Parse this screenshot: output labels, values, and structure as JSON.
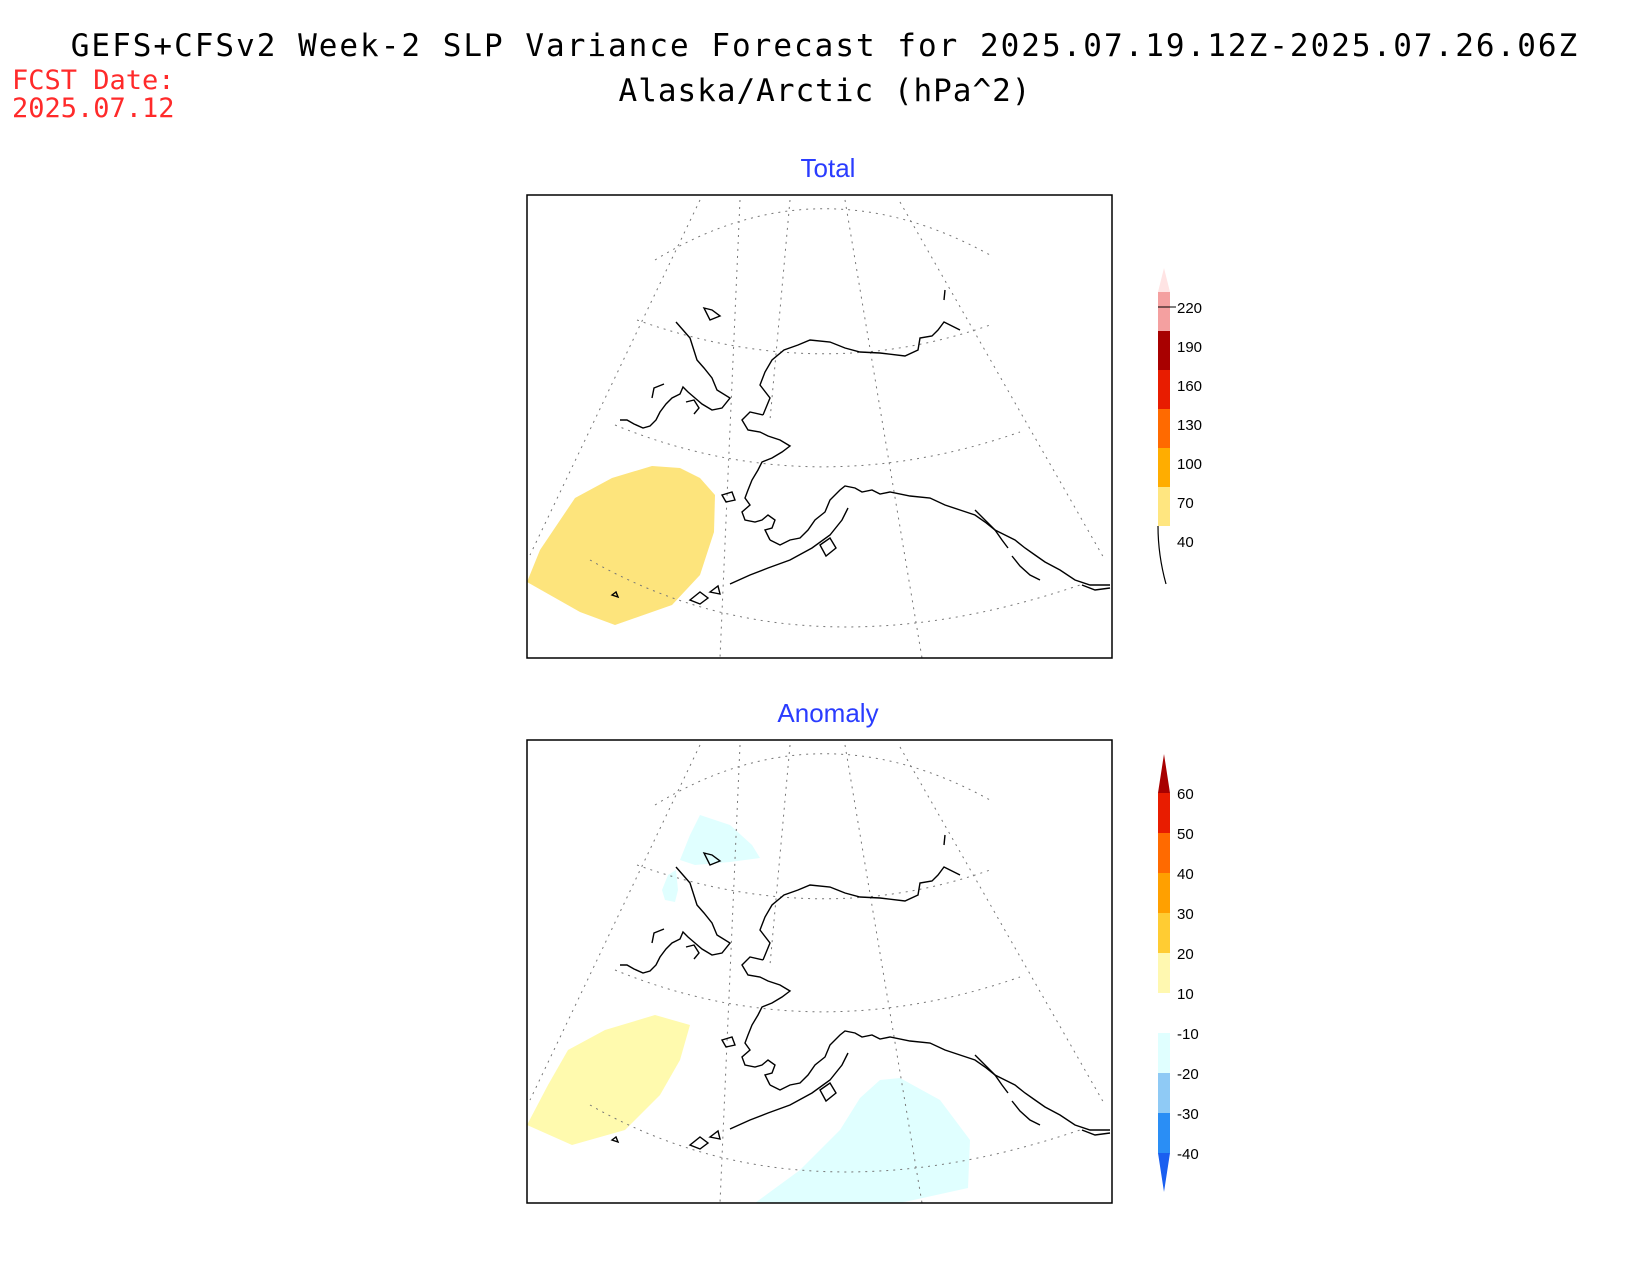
{
  "title": "GEFS+CFSv2 Week-2 SLP Variance Forecast for 2025.07.19.12Z-2025.07.26.06Z",
  "subtitle": "Alaska/Arctic (hPa^2)",
  "forecast_date": {
    "label": "FCST Date:",
    "value": "2025.07.12"
  },
  "panels": [
    {
      "name": "total",
      "title": "Total",
      "title_color": "#2a3cff",
      "colorbar": {
        "levels": [
          "40",
          "70",
          "100",
          "130",
          "160",
          "190",
          "220"
        ],
        "colors": [
          "#ffffff",
          "#ffe680",
          "#ffad00",
          "#ff6a00",
          "#e81c00",
          "#a80000",
          "#f4a0a0",
          "#ffe4e4"
        ]
      }
    },
    {
      "name": "anomaly",
      "title": "Anomaly",
      "title_color": "#2a3cff",
      "colorbar": {
        "levels": [
          "-40",
          "-30",
          "-20",
          "-10",
          "10",
          "20",
          "30",
          "40",
          "50",
          "60"
        ],
        "colors": [
          "#1a5ff0",
          "#2a8ef5",
          "#8fcaf5",
          "#e0ffff",
          "#ffffff",
          "#fff8b0",
          "#ffcc33",
          "#ffa000",
          "#ff6a00",
          "#e81c00",
          "#a80000"
        ]
      }
    }
  ],
  "chart_data": [
    {
      "type": "heatmap",
      "title": "Total",
      "units": "hPa^2",
      "legend_placement": "right",
      "contour_levels": [
        40,
        70,
        100,
        130,
        160,
        190,
        220
      ],
      "regions": [
        {
          "location": "western Bering Sea / Kamchatka",
          "range": "40-70",
          "color": "#fde47c"
        }
      ]
    },
    {
      "type": "heatmap",
      "title": "Anomaly",
      "units": "hPa^2",
      "legend_placement": "right",
      "contour_levels": [
        -40,
        -30,
        -20,
        -10,
        10,
        20,
        30,
        40,
        50,
        60
      ],
      "regions": [
        {
          "location": "western Bering Sea / Kamchatka",
          "range": "10-20",
          "color": "#fffaae"
        },
        {
          "location": "Gulf of Alaska / North Pacific",
          "range": "-20 to -10",
          "color": "#e0ffff"
        },
        {
          "location": "East Siberian / Chukchi Sea",
          "range": "-20 to -10",
          "color": "#e0ffff"
        }
      ]
    }
  ]
}
